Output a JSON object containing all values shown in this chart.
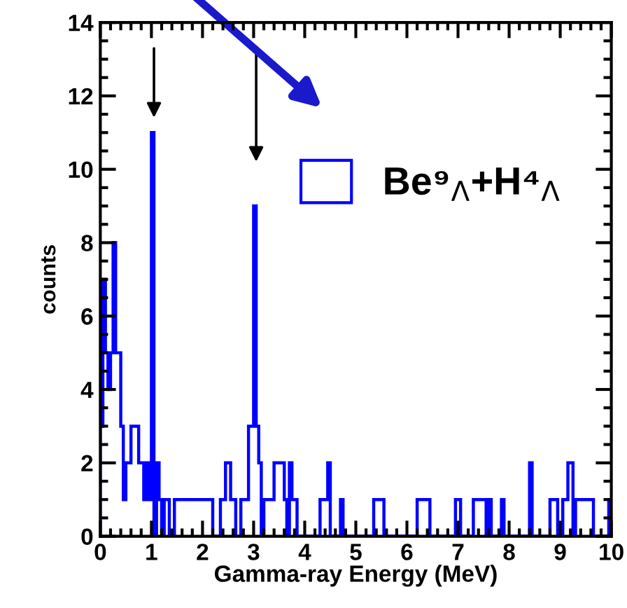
{
  "chart_data": {
    "type": "histogram",
    "xlabel": "Gamma-ray Energy (MeV)",
    "ylabel": "counts",
    "bins": [
      0,
      0.05,
      0.1,
      0.15,
      0.2,
      0.25,
      0.3,
      0.35,
      0.4,
      0.45,
      0.5,
      0.55,
      0.6,
      0.65,
      0.7,
      0.75,
      0.8,
      0.85,
      0.9,
      0.95,
      1,
      1.05,
      1.1,
      1.15,
      1.2,
      1.25,
      1.3,
      1.35,
      1.4,
      1.45,
      1.5,
      1.55,
      1.6,
      1.65,
      1.7,
      1.75,
      1.8,
      1.85,
      1.9,
      1.95,
      2,
      2.05,
      2.1,
      2.15,
      2.2,
      2.25,
      2.3,
      2.35,
      2.4,
      2.45,
      2.5,
      2.55,
      2.6,
      2.65,
      2.7,
      2.75,
      2.8,
      2.85,
      2.9,
      2.95,
      3,
      3.05,
      3.1,
      3.15,
      3.2,
      3.25,
      3.3,
      3.35,
      3.4,
      3.45,
      3.5,
      3.55,
      3.6,
      3.65,
      3.7,
      3.75,
      3.8,
      3.85,
      3.9,
      3.95,
      4,
      4.05,
      4.1,
      4.15,
      4.2,
      4.25,
      4.3,
      4.35,
      4.4,
      4.45,
      4.5,
      4.55,
      4.6,
      4.65,
      4.7,
      4.75,
      4.8,
      4.85,
      4.9,
      4.95,
      5,
      5.05,
      5.1,
      5.15,
      5.2,
      5.25,
      5.3,
      5.35,
      5.4,
      5.45,
      5.5,
      5.55,
      5.6,
      5.65,
      5.7,
      5.75,
      5.8,
      5.85,
      5.9,
      5.95,
      6,
      6.05,
      6.1,
      6.15,
      6.2,
      6.25,
      6.3,
      6.35,
      6.4,
      6.45,
      6.5,
      6.55,
      6.6,
      6.65,
      6.7,
      6.75,
      6.8,
      6.85,
      6.9,
      6.95,
      7,
      7.05,
      7.1,
      7.15,
      7.2,
      7.25,
      7.3,
      7.35,
      7.4,
      7.45,
      7.5,
      7.55,
      7.6,
      7.65,
      7.7,
      7.75,
      7.8,
      7.85,
      7.9,
      7.95,
      8,
      8.05,
      8.1,
      8.15,
      8.2,
      8.25,
      8.3,
      8.35,
      8.4,
      8.45,
      8.5,
      8.55,
      8.6,
      8.65,
      8.7,
      8.75,
      8.8,
      8.85,
      8.9,
      8.95,
      9,
      9.05,
      9.1,
      9.15,
      9.2,
      9.25,
      9.3,
      9.35,
      9.4,
      9.45,
      9.5,
      9.55,
      9.6,
      9.65,
      9.7,
      9.75,
      9.8,
      9.85,
      9.9,
      9.95,
      10
    ],
    "series": [
      {
        "name": "Be⁹$_{Λ}$+H⁴$_{Λ}$",
        "color": "#0000ff",
        "values": [
          3,
          7,
          5,
          4,
          5,
          8,
          5,
          5,
          3,
          1,
          2,
          2,
          3,
          3,
          3,
          2,
          2,
          1,
          2,
          1,
          11,
          0,
          2,
          1,
          0,
          1,
          1,
          0,
          0,
          1,
          1,
          1,
          1,
          1,
          1,
          1,
          1,
          1,
          1,
          1,
          1,
          1,
          1,
          1,
          0,
          0,
          0,
          1,
          1,
          2,
          2,
          1,
          1,
          0,
          0,
          1,
          1,
          1,
          3,
          3,
          9,
          3,
          2,
          0,
          1,
          1,
          1,
          1,
          2,
          2,
          2,
          2,
          1,
          0,
          2,
          1,
          1,
          0,
          0,
          0,
          0,
          0,
          0,
          0,
          0,
          0,
          1,
          1,
          1,
          2,
          0,
          0,
          0,
          0,
          1,
          0,
          0,
          0,
          0,
          0,
          0,
          0,
          0,
          0,
          0,
          0,
          0,
          1,
          1,
          1,
          1,
          0,
          0,
          0,
          0,
          0,
          0,
          0,
          0,
          0,
          0,
          0,
          0,
          0,
          1,
          1,
          1,
          1,
          1,
          0,
          0,
          0,
          0,
          0,
          0,
          0,
          0,
          0,
          0,
          1,
          1,
          0,
          0,
          0,
          0,
          0,
          1,
          1,
          1,
          1,
          1,
          0,
          1,
          0,
          0,
          0,
          0,
          1,
          0,
          0,
          0,
          0,
          0,
          0,
          0,
          0,
          0,
          0,
          2,
          0,
          0,
          0,
          0,
          0,
          0,
          0,
          1,
          1,
          1,
          0,
          0,
          1,
          1,
          2,
          2,
          0,
          1,
          1,
          1,
          1,
          1,
          1,
          1,
          0,
          0,
          0,
          0,
          0,
          0,
          1
        ]
      }
    ],
    "xlim": [
      0,
      10
    ],
    "ylim": [
      0,
      14
    ],
    "xticks": [
      0,
      1,
      2,
      3,
      4,
      5,
      6,
      7,
      8,
      9,
      10
    ],
    "yticks": [
      0,
      2,
      4,
      6,
      8,
      10,
      12,
      14
    ],
    "grid": false,
    "legend": "top right"
  }
}
